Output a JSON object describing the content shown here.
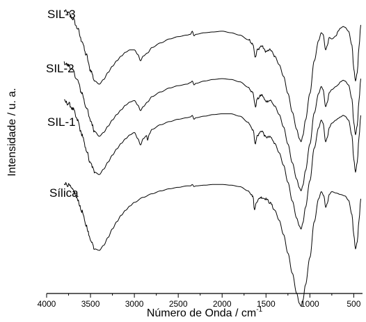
{
  "chart_data": {
    "type": "line",
    "title": "",
    "xlabel": "Número de Onda / cm",
    "xlabel_sup": "-1",
    "ylabel": "Intensidade / u. a.",
    "xlim": [
      4000,
      400
    ],
    "x_reversed": true,
    "xticks": [
      4000,
      3500,
      3000,
      2500,
      2000,
      1500,
      1000,
      500
    ],
    "xticks_minor": [
      3750,
      3250,
      2750,
      2250,
      1750,
      1250,
      750
    ],
    "y_ticks_shown": false,
    "grid": false,
    "series": [
      {
        "name": "SIL-3",
        "points": [
          [
            3800,
            0.94
          ],
          [
            3750,
            0.91
          ],
          [
            3700,
            0.84
          ],
          [
            3650,
            0.72
          ],
          [
            3600,
            0.56
          ],
          [
            3550,
            0.38
          ],
          [
            3500,
            0.18
          ],
          [
            3450,
            0.04
          ],
          [
            3400,
            0.0
          ],
          [
            3350,
            0.06
          ],
          [
            3300,
            0.15
          ],
          [
            3250,
            0.23
          ],
          [
            3200,
            0.3
          ],
          [
            3150,
            0.36
          ],
          [
            3100,
            0.41
          ],
          [
            3050,
            0.44
          ],
          [
            3000,
            0.44
          ],
          [
            2960,
            0.38
          ],
          [
            2930,
            0.3
          ],
          [
            2900,
            0.36
          ],
          [
            2850,
            0.4
          ],
          [
            2800,
            0.47
          ],
          [
            2700,
            0.53
          ],
          [
            2600,
            0.58
          ],
          [
            2500,
            0.61
          ],
          [
            2400,
            0.63
          ],
          [
            2360,
            0.64
          ],
          [
            2340,
            0.68
          ],
          [
            2320,
            0.62
          ],
          [
            2300,
            0.64
          ],
          [
            2200,
            0.66
          ],
          [
            2100,
            0.67
          ],
          [
            2000,
            0.68
          ],
          [
            1900,
            0.66
          ],
          [
            1800,
            0.63
          ],
          [
            1700,
            0.57
          ],
          [
            1650,
            0.52
          ],
          [
            1620,
            0.34
          ],
          [
            1600,
            0.44
          ],
          [
            1550,
            0.49
          ],
          [
            1500,
            0.42
          ],
          [
            1450,
            0.44
          ],
          [
            1400,
            0.36
          ],
          [
            1350,
            0.25
          ],
          [
            1300,
            0.1
          ],
          [
            1250,
            -0.12
          ],
          [
            1200,
            -0.36
          ],
          [
            1150,
            -0.58
          ],
          [
            1120,
            -0.7
          ],
          [
            1100,
            -0.74
          ],
          [
            1080,
            -0.66
          ],
          [
            1050,
            -0.46
          ],
          [
            1000,
            -0.12
          ],
          [
            950,
            0.3
          ],
          [
            900,
            0.56
          ],
          [
            870,
            0.66
          ],
          [
            850,
            0.64
          ],
          [
            820,
            0.44
          ],
          [
            800,
            0.5
          ],
          [
            780,
            0.6
          ],
          [
            750,
            0.58
          ],
          [
            700,
            0.62
          ],
          [
            680,
            0.68
          ],
          [
            650,
            0.72
          ],
          [
            620,
            0.74
          ],
          [
            600,
            0.73
          ],
          [
            560,
            0.68
          ],
          [
            520,
            0.5
          ],
          [
            500,
            0.2
          ],
          [
            480,
            0.04
          ],
          [
            460,
            0.15
          ],
          [
            440,
            0.48
          ],
          [
            420,
            0.76
          ]
        ]
      },
      {
        "name": "SIL-2",
        "points": [
          [
            3800,
            0.94
          ],
          [
            3750,
            0.91
          ],
          [
            3700,
            0.84
          ],
          [
            3650,
            0.72
          ],
          [
            3600,
            0.56
          ],
          [
            3550,
            0.38
          ],
          [
            3500,
            0.2
          ],
          [
            3450,
            0.06
          ],
          [
            3400,
            0.0
          ],
          [
            3350,
            0.05
          ],
          [
            3300,
            0.13
          ],
          [
            3250,
            0.21
          ],
          [
            3200,
            0.28
          ],
          [
            3150,
            0.34
          ],
          [
            3100,
            0.4
          ],
          [
            3050,
            0.44
          ],
          [
            3000,
            0.46
          ],
          [
            2960,
            0.4
          ],
          [
            2930,
            0.33
          ],
          [
            2900,
            0.38
          ],
          [
            2850,
            0.44
          ],
          [
            2800,
            0.51
          ],
          [
            2700,
            0.57
          ],
          [
            2600,
            0.62
          ],
          [
            2500,
            0.65
          ],
          [
            2400,
            0.67
          ],
          [
            2360,
            0.69
          ],
          [
            2340,
            0.71
          ],
          [
            2320,
            0.66
          ],
          [
            2300,
            0.68
          ],
          [
            2200,
            0.71
          ],
          [
            2100,
            0.73
          ],
          [
            2000,
            0.74
          ],
          [
            1900,
            0.73
          ],
          [
            1800,
            0.7
          ],
          [
            1700,
            0.63
          ],
          [
            1650,
            0.56
          ],
          [
            1620,
            0.38
          ],
          [
            1600,
            0.48
          ],
          [
            1550,
            0.53
          ],
          [
            1500,
            0.45
          ],
          [
            1450,
            0.46
          ],
          [
            1400,
            0.39
          ],
          [
            1350,
            0.28
          ],
          [
            1300,
            0.12
          ],
          [
            1250,
            -0.1
          ],
          [
            1200,
            -0.34
          ],
          [
            1150,
            -0.55
          ],
          [
            1120,
            -0.66
          ],
          [
            1100,
            -0.7
          ],
          [
            1080,
            -0.63
          ],
          [
            1050,
            -0.44
          ],
          [
            1000,
            -0.1
          ],
          [
            950,
            0.3
          ],
          [
            900,
            0.55
          ],
          [
            870,
            0.64
          ],
          [
            850,
            0.6
          ],
          [
            820,
            0.38
          ],
          [
            800,
            0.44
          ],
          [
            780,
            0.56
          ],
          [
            750,
            0.6
          ],
          [
            700,
            0.64
          ],
          [
            680,
            0.66
          ],
          [
            650,
            0.7
          ],
          [
            620,
            0.72
          ],
          [
            600,
            0.71
          ],
          [
            560,
            0.66
          ],
          [
            520,
            0.48
          ],
          [
            500,
            0.18
          ],
          [
            480,
            0.02
          ],
          [
            460,
            0.14
          ],
          [
            440,
            0.46
          ],
          [
            420,
            0.74
          ]
        ]
      },
      {
        "name": "SIL-1",
        "points": [
          [
            3800,
            0.94
          ],
          [
            3750,
            0.91
          ],
          [
            3700,
            0.84
          ],
          [
            3650,
            0.7
          ],
          [
            3600,
            0.52
          ],
          [
            3550,
            0.32
          ],
          [
            3500,
            0.14
          ],
          [
            3450,
            0.03
          ],
          [
            3400,
            0.0
          ],
          [
            3350,
            0.07
          ],
          [
            3300,
            0.16
          ],
          [
            3250,
            0.25
          ],
          [
            3200,
            0.33
          ],
          [
            3150,
            0.4
          ],
          [
            3100,
            0.46
          ],
          [
            3050,
            0.51
          ],
          [
            3000,
            0.54
          ],
          [
            2960,
            0.46
          ],
          [
            2930,
            0.38
          ],
          [
            2900,
            0.46
          ],
          [
            2860,
            0.5
          ],
          [
            2850,
            0.44
          ],
          [
            2830,
            0.52
          ],
          [
            2800,
            0.58
          ],
          [
            2700,
            0.64
          ],
          [
            2600,
            0.68
          ],
          [
            2500,
            0.71
          ],
          [
            2400,
            0.73
          ],
          [
            2360,
            0.74
          ],
          [
            2340,
            0.76
          ],
          [
            2320,
            0.71
          ],
          [
            2300,
            0.73
          ],
          [
            2200,
            0.75
          ],
          [
            2100,
            0.77
          ],
          [
            2000,
            0.78
          ],
          [
            1900,
            0.78
          ],
          [
            1800,
            0.75
          ],
          [
            1700,
            0.67
          ],
          [
            1650,
            0.58
          ],
          [
            1620,
            0.4
          ],
          [
            1600,
            0.5
          ],
          [
            1550,
            0.56
          ],
          [
            1500,
            0.48
          ],
          [
            1450,
            0.48
          ],
          [
            1400,
            0.4
          ],
          [
            1350,
            0.28
          ],
          [
            1300,
            0.12
          ],
          [
            1250,
            -0.1
          ],
          [
            1200,
            -0.34
          ],
          [
            1150,
            -0.56
          ],
          [
            1120,
            -0.66
          ],
          [
            1100,
            -0.7
          ],
          [
            1080,
            -0.62
          ],
          [
            1050,
            -0.42
          ],
          [
            1000,
            -0.08
          ],
          [
            950,
            0.34
          ],
          [
            900,
            0.6
          ],
          [
            870,
            0.7
          ],
          [
            850,
            0.66
          ],
          [
            820,
            0.42
          ],
          [
            800,
            0.48
          ],
          [
            780,
            0.6
          ],
          [
            750,
            0.66
          ],
          [
            700,
            0.7
          ],
          [
            680,
            0.72
          ],
          [
            650,
            0.74
          ],
          [
            620,
            0.76
          ],
          [
            600,
            0.75
          ],
          [
            560,
            0.7
          ],
          [
            520,
            0.5
          ],
          [
            500,
            0.2
          ],
          [
            480,
            0.03
          ],
          [
            460,
            0.16
          ],
          [
            440,
            0.48
          ],
          [
            420,
            0.76
          ]
        ]
      },
      {
        "name": "Sílica",
        "points": [
          [
            3800,
            0.94
          ],
          [
            3750,
            0.91
          ],
          [
            3700,
            0.84
          ],
          [
            3650,
            0.72
          ],
          [
            3600,
            0.55
          ],
          [
            3550,
            0.35
          ],
          [
            3500,
            0.15
          ],
          [
            3450,
            0.02
          ],
          [
            3400,
            0.0
          ],
          [
            3350,
            0.07
          ],
          [
            3300,
            0.18
          ],
          [
            3250,
            0.3
          ],
          [
            3200,
            0.4
          ],
          [
            3150,
            0.49
          ],
          [
            3100,
            0.56
          ],
          [
            3050,
            0.62
          ],
          [
            3000,
            0.67
          ],
          [
            2900,
            0.74
          ],
          [
            2800,
            0.79
          ],
          [
            2700,
            0.83
          ],
          [
            2600,
            0.86
          ],
          [
            2500,
            0.88
          ],
          [
            2400,
            0.9
          ],
          [
            2360,
            0.9
          ],
          [
            2340,
            0.92
          ],
          [
            2320,
            0.89
          ],
          [
            2300,
            0.9
          ],
          [
            2200,
            0.91
          ],
          [
            2100,
            0.92
          ],
          [
            2000,
            0.92
          ],
          [
            1900,
            0.91
          ],
          [
            1800,
            0.89
          ],
          [
            1700,
            0.83
          ],
          [
            1650,
            0.76
          ],
          [
            1630,
            0.56
          ],
          [
            1610,
            0.68
          ],
          [
            1560,
            0.74
          ],
          [
            1500,
            0.72
          ],
          [
            1450,
            0.66
          ],
          [
            1400,
            0.56
          ],
          [
            1350,
            0.42
          ],
          [
            1300,
            0.22
          ],
          [
            1250,
            -0.04
          ],
          [
            1200,
            -0.32
          ],
          [
            1150,
            -0.6
          ],
          [
            1120,
            -0.74
          ],
          [
            1100,
            -0.78
          ],
          [
            1080,
            -0.7
          ],
          [
            1050,
            -0.48
          ],
          [
            1000,
            -0.1
          ],
          [
            950,
            0.4
          ],
          [
            900,
            0.72
          ],
          [
            870,
            0.82
          ],
          [
            840,
            0.76
          ],
          [
            820,
            0.6
          ],
          [
            800,
            0.66
          ],
          [
            780,
            0.78
          ],
          [
            750,
            0.82
          ],
          [
            700,
            0.8
          ],
          [
            650,
            0.78
          ],
          [
            600,
            0.76
          ],
          [
            560,
            0.7
          ],
          [
            520,
            0.5
          ],
          [
            500,
            0.22
          ],
          [
            480,
            0.02
          ],
          [
            460,
            0.12
          ],
          [
            440,
            0.42
          ],
          [
            420,
            0.72
          ]
        ]
      }
    ]
  }
}
